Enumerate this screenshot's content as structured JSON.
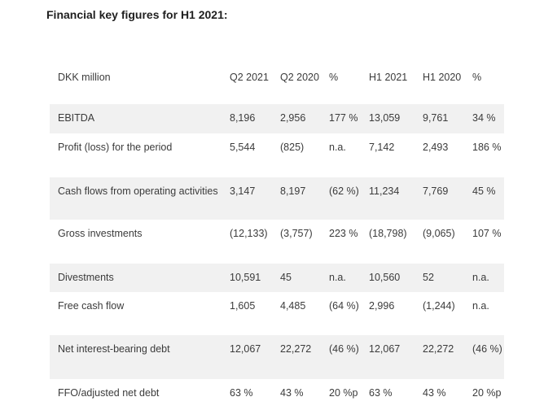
{
  "title": "Financial key figures for H1 2021:",
  "table": {
    "headers": [
      "DKK million",
      "Q2 2021",
      "Q2 2020",
      "%",
      "H1 2021",
      "H1 2020",
      "%"
    ],
    "rows": [
      [
        "EBITDA",
        "8,196",
        "2,956",
        "177 %",
        "13,059",
        "9,761",
        "34 %"
      ],
      [
        "Profit (loss) for the period",
        "5,544",
        "(825)",
        "n.a.",
        "7,142",
        "2,493",
        "186 %"
      ],
      [
        "Cash flows from operating activities",
        "3,147",
        "8,197",
        "(62 %)",
        "11,234",
        "7,769",
        "45 %"
      ],
      [
        "Gross investments",
        "(12,133)",
        "(3,757)",
        "223 %",
        "(18,798)",
        "(9,065)",
        "107 %"
      ],
      [
        "Divestments",
        "10,591",
        "45",
        "n.a.",
        "10,560",
        "52",
        "n.a."
      ],
      [
        "Free cash flow",
        "1,605",
        "4,485",
        "(64 %)",
        "2,996",
        "(1,244)",
        "n.a."
      ],
      [
        "Net interest-bearing debt",
        "12,067",
        "22,272",
        "(46 %)",
        "12,067",
        "22,272",
        "(46 %)"
      ],
      [
        "FFO/adjusted net debt",
        "63 %",
        "43 %",
        "20 %p",
        "63 %",
        "43 %",
        "20 %p"
      ]
    ]
  }
}
